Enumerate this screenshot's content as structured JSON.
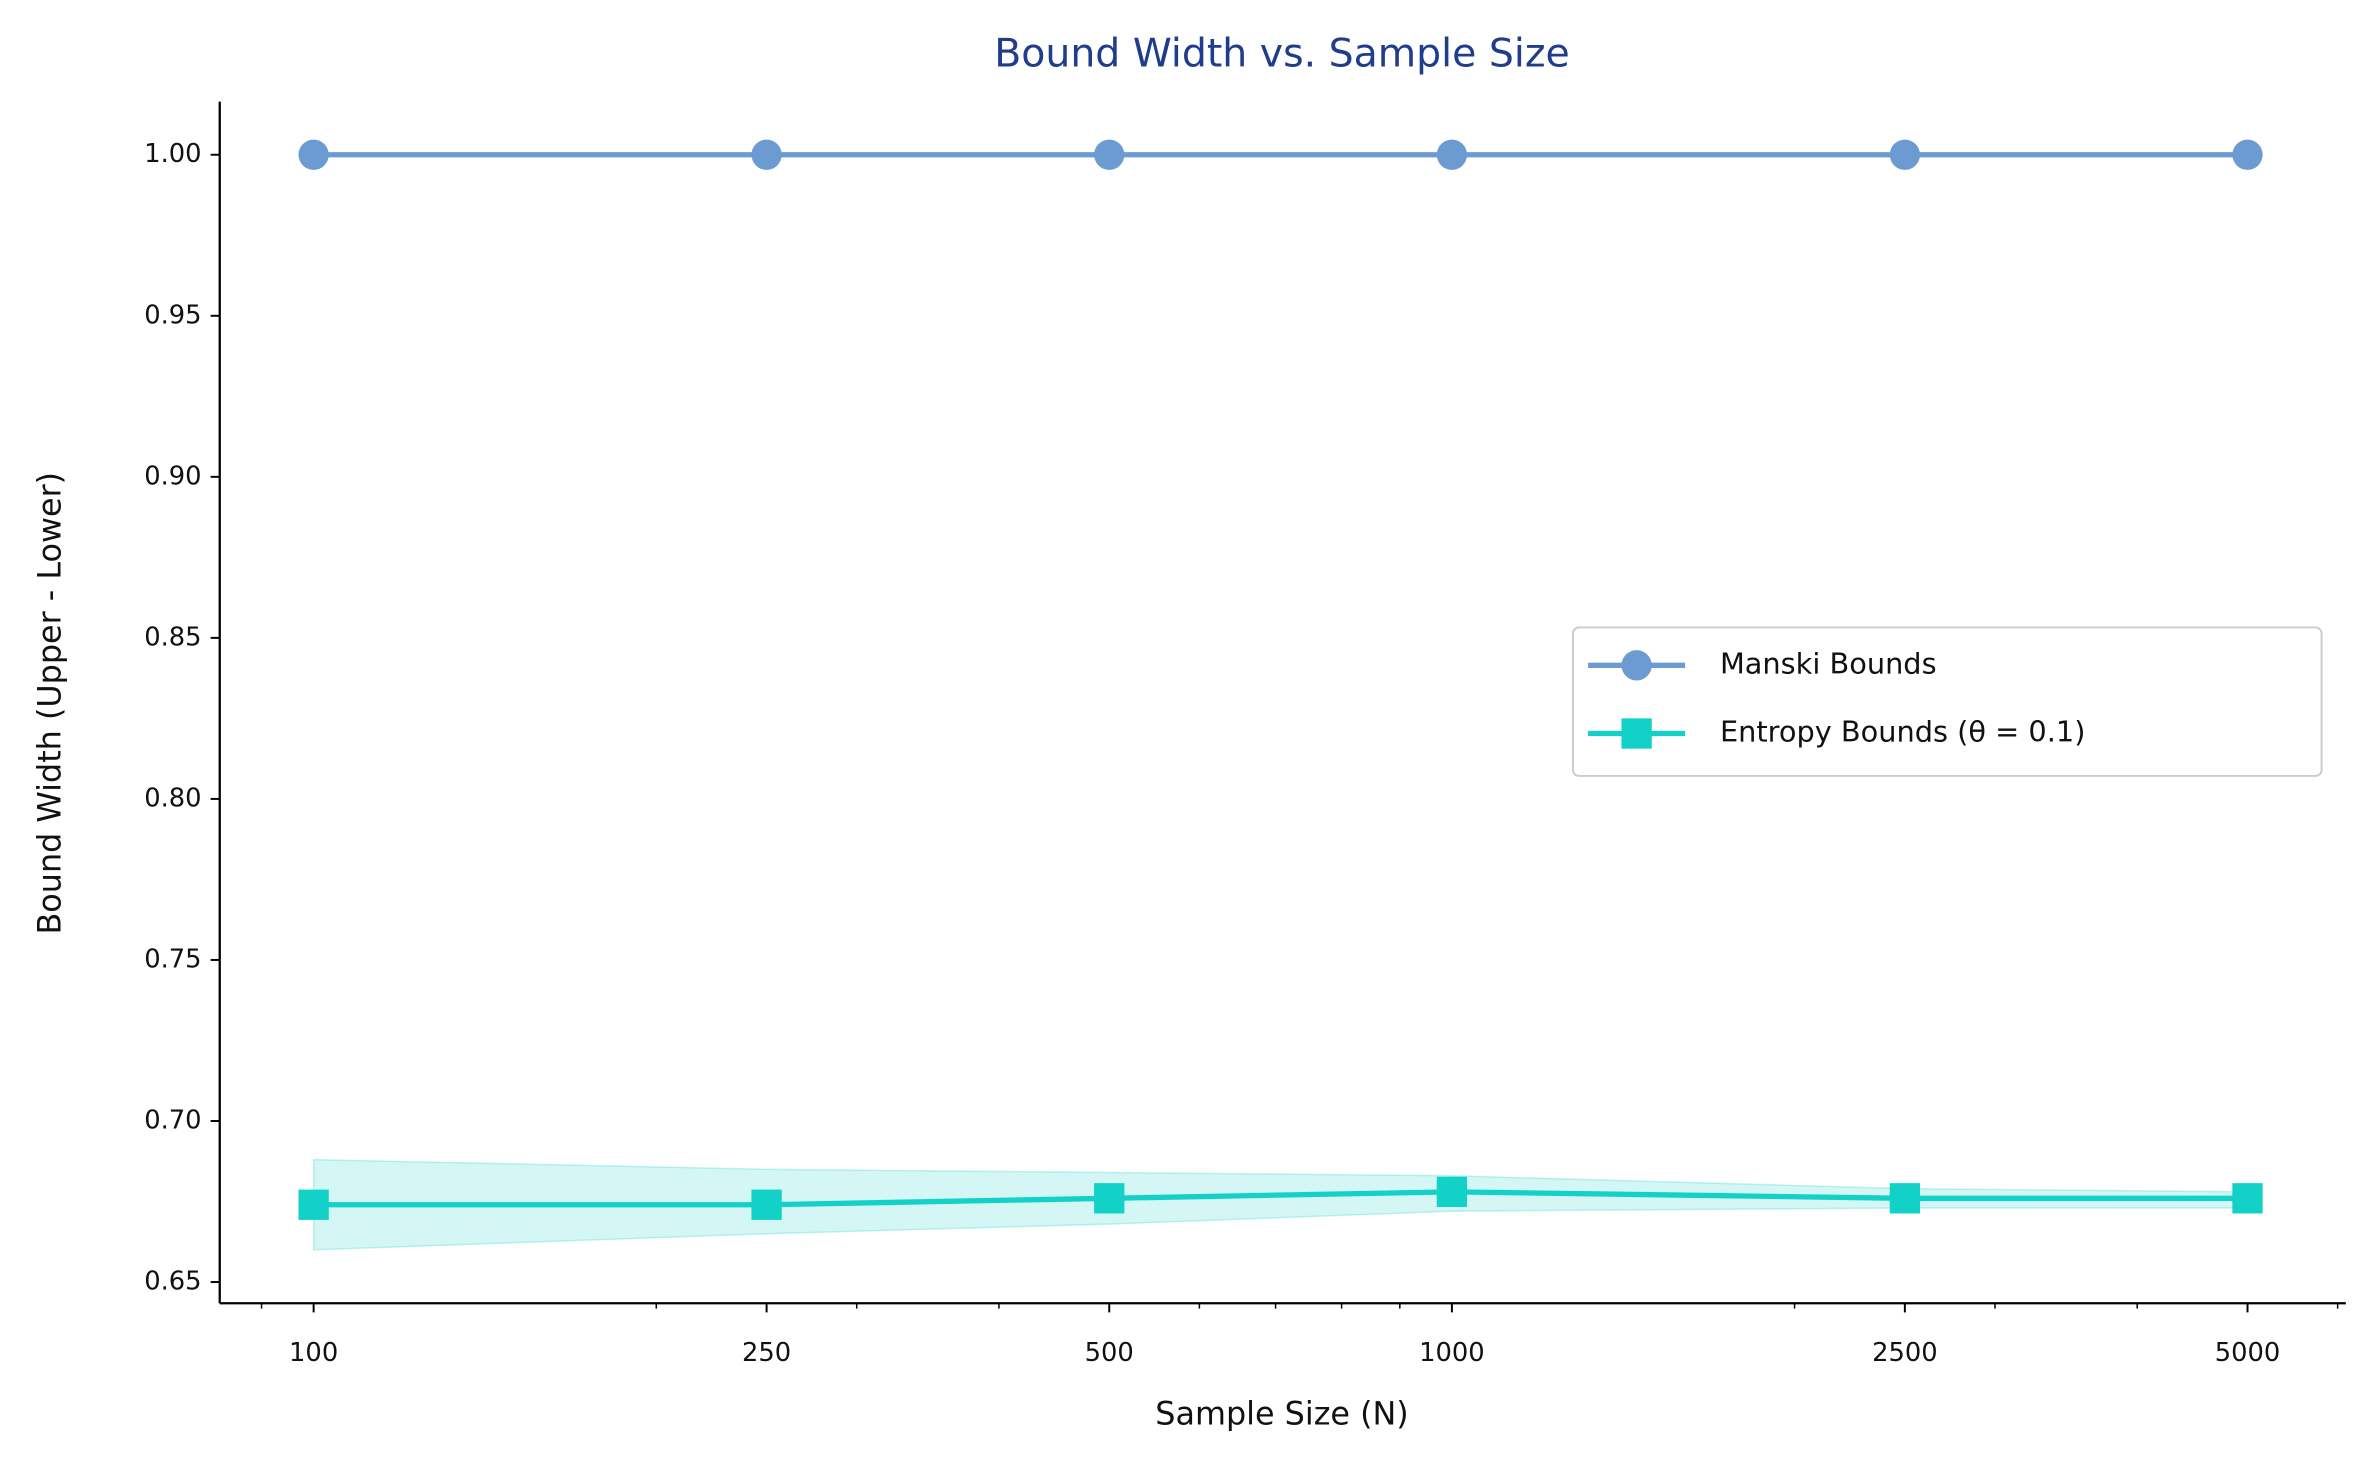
{
  "chart_data": {
    "type": "line",
    "title": "Bound Width vs. Sample Size",
    "x_label": "Sample Size (N)",
    "y_label": "Bound Width (Upper - Lower)",
    "x": [
      100,
      250,
      500,
      1000,
      2500,
      5000
    ],
    "x_log": true,
    "xlim": [
      82.7,
      6100
    ],
    "xticks": [
      100,
      250,
      500,
      1000,
      2500,
      5000
    ],
    "xminor_ticks": [
      90,
      200,
      300,
      400,
      600,
      700,
      800,
      900,
      2000,
      3000,
      4000,
      6000
    ],
    "ylim": [
      0.6434,
      1.0165
    ],
    "yticks": [
      {
        "value": 0.65,
        "label": "0.65"
      },
      {
        "value": 0.7,
        "label": "0.70"
      },
      0.75,
      {
        "value": 0.8,
        "label": "0.80"
      },
      0.85,
      {
        "value": 0.9,
        "label": "0.90"
      },
      0.95,
      {
        "value": 1.0,
        "label": "1.00"
      }
    ],
    "legend_position": "center right",
    "series": [
      {
        "name": "Manski Bounds",
        "color": "#6b9bd1",
        "marker": "circle",
        "values": [
          1.0,
          1.0,
          1.0,
          1.0,
          1.0,
          1.0
        ]
      },
      {
        "name": "Entropy Bounds (θ = 0.1)",
        "color": "#12d1c6",
        "marker": "square",
        "values": [
          0.674,
          0.674,
          0.676,
          0.678,
          0.676,
          0.676
        ],
        "lower": [
          0.66,
          0.665,
          0.668,
          0.672,
          0.673,
          0.673
        ],
        "upper": [
          0.688,
          0.685,
          0.684,
          0.683,
          0.679,
          0.678
        ]
      }
    ]
  }
}
